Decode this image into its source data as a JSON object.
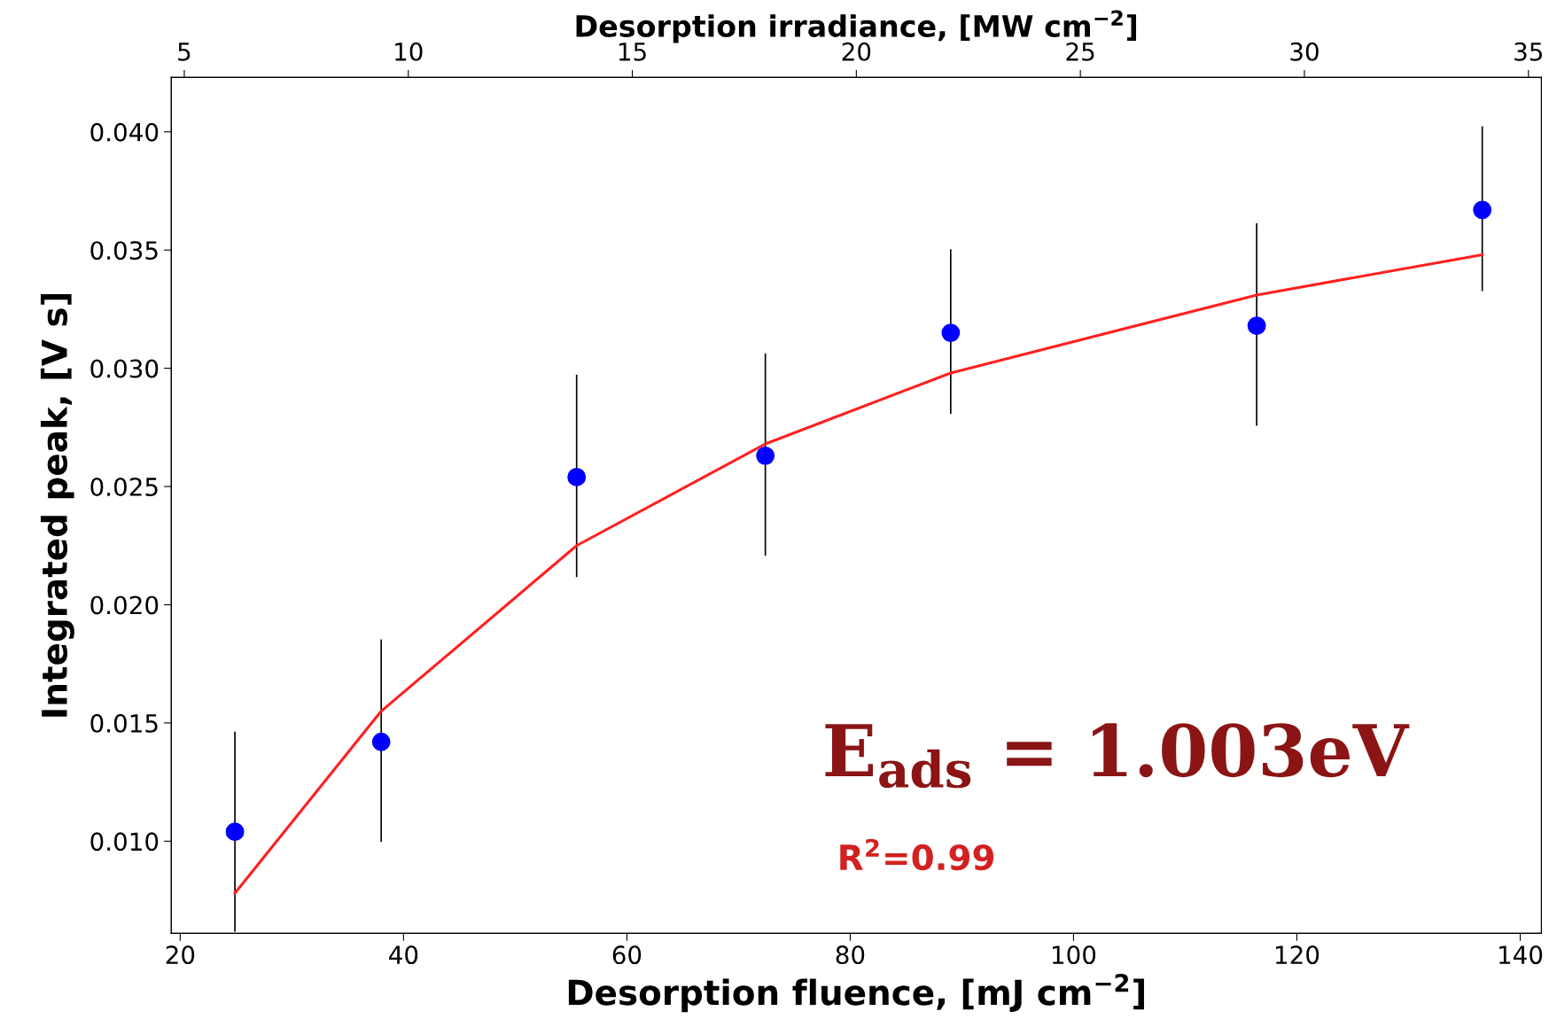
{
  "chart_data": {
    "type": "scatter",
    "xlabel": "Desorption fluence, [mJ cm$^{−2}$]",
    "ylabel": "Integrated peak, [V s]",
    "x2label": "Desorption irradiance, [MW cm$^{−2}$]",
    "xlim": [
      19.2,
      141.9
    ],
    "xticks": [
      20,
      40,
      60,
      80,
      100,
      120,
      140
    ],
    "x2lim": [
      4.71,
      35.29
    ],
    "x2ticks": [
      5,
      10,
      15,
      20,
      25,
      30,
      35
    ],
    "ylim": [
      0.0061,
      0.0423
    ],
    "yticks": [
      {
        "value": 0.01,
        "label": "0.010"
      },
      {
        "value": 0.015,
        "label": "0.015"
      },
      {
        "value": 0.02,
        "label": "0.020"
      },
      {
        "value": 0.025,
        "label": "0.025"
      },
      {
        "value": 0.03,
        "label": "0.030"
      },
      {
        "value": 0.035,
        "label": "0.035"
      },
      {
        "value": 0.04,
        "label": "0.040"
      }
    ],
    "grid": false,
    "legend": false,
    "series": [
      {
        "color": "#0000ff",
        "marker": "circle",
        "x": [
          24.9,
          38.0,
          55.5,
          72.4,
          89.0,
          116.4,
          136.6
        ],
        "values": [
          0.0104,
          0.0142,
          0.0254,
          0.0263,
          0.0315,
          0.0318,
          0.0367
        ],
        "errors": [
          [
            0.0062,
            0.0146
          ],
          [
            0.01,
            0.0185
          ],
          [
            0.0212,
            0.0297
          ],
          [
            0.0221,
            0.0306
          ],
          [
            0.0281,
            0.035
          ],
          [
            0.0276,
            0.0361
          ],
          [
            0.0333,
            0.0402
          ]
        ]
      },
      {
        "type": "line",
        "color": "#ff2020",
        "line_style": "solid",
        "x": [
          24.9,
          38.0,
          55.5,
          72.4,
          89.0,
          116.4,
          136.6
        ],
        "values": [
          0.0078,
          0.0155,
          0.0225,
          0.0268,
          0.0298,
          0.0331,
          0.0348
        ]
      }
    ],
    "annotations": [
      "E$_{ads}$ = 1.003eV",
      "R$^{2}$=0.99"
    ]
  }
}
